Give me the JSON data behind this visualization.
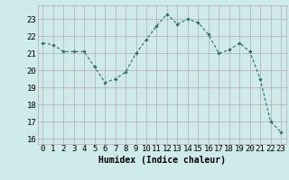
{
  "x": [
    0,
    1,
    2,
    3,
    4,
    5,
    6,
    7,
    8,
    9,
    10,
    11,
    12,
    13,
    14,
    15,
    16,
    17,
    18,
    19,
    20,
    21,
    22,
    23
  ],
  "y": [
    21.6,
    21.5,
    21.1,
    21.1,
    21.1,
    20.2,
    19.3,
    19.5,
    19.9,
    21.0,
    21.8,
    22.6,
    23.3,
    22.7,
    23.0,
    22.8,
    22.1,
    21.0,
    21.2,
    21.6,
    21.1,
    19.5,
    17.0,
    16.4
  ],
  "xlabel": "Humidex (Indice chaleur)",
  "bg_color": "#ceeaea",
  "line_color": "#2d6e65",
  "marker_color": "#2d6e65",
  "grid_color": "#b8aaaa",
  "xlim": [
    -0.5,
    23.5
  ],
  "ylim": [
    15.7,
    23.8
  ],
  "yticks": [
    16,
    17,
    18,
    19,
    20,
    21,
    22,
    23
  ],
  "xticks": [
    0,
    1,
    2,
    3,
    4,
    5,
    6,
    7,
    8,
    9,
    10,
    11,
    12,
    13,
    14,
    15,
    16,
    17,
    18,
    19,
    20,
    21,
    22,
    23
  ],
  "xlabel_fontsize": 7,
  "tick_fontsize": 6.5
}
